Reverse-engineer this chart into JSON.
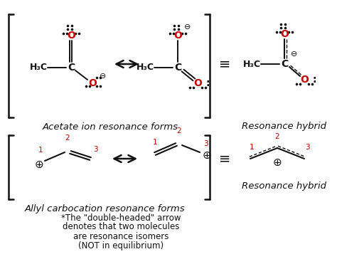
{
  "bg_color": "#ffffff",
  "red_color": "#cc0000",
  "black_color": "#111111",
  "acetate_label": "Acetate ion resonance forms",
  "allyl_label": "Allyl carbocation resonance forms",
  "hybrid_label": "Resonance hybrid",
  "footnote_lines": [
    "*The \"double-headed\" arrow",
    "denotes that two molecules",
    "are resonance isomers",
    "(NOT in equilibrium)"
  ],
  "figsize": [
    4.74,
    3.78
  ],
  "dpi": 100
}
